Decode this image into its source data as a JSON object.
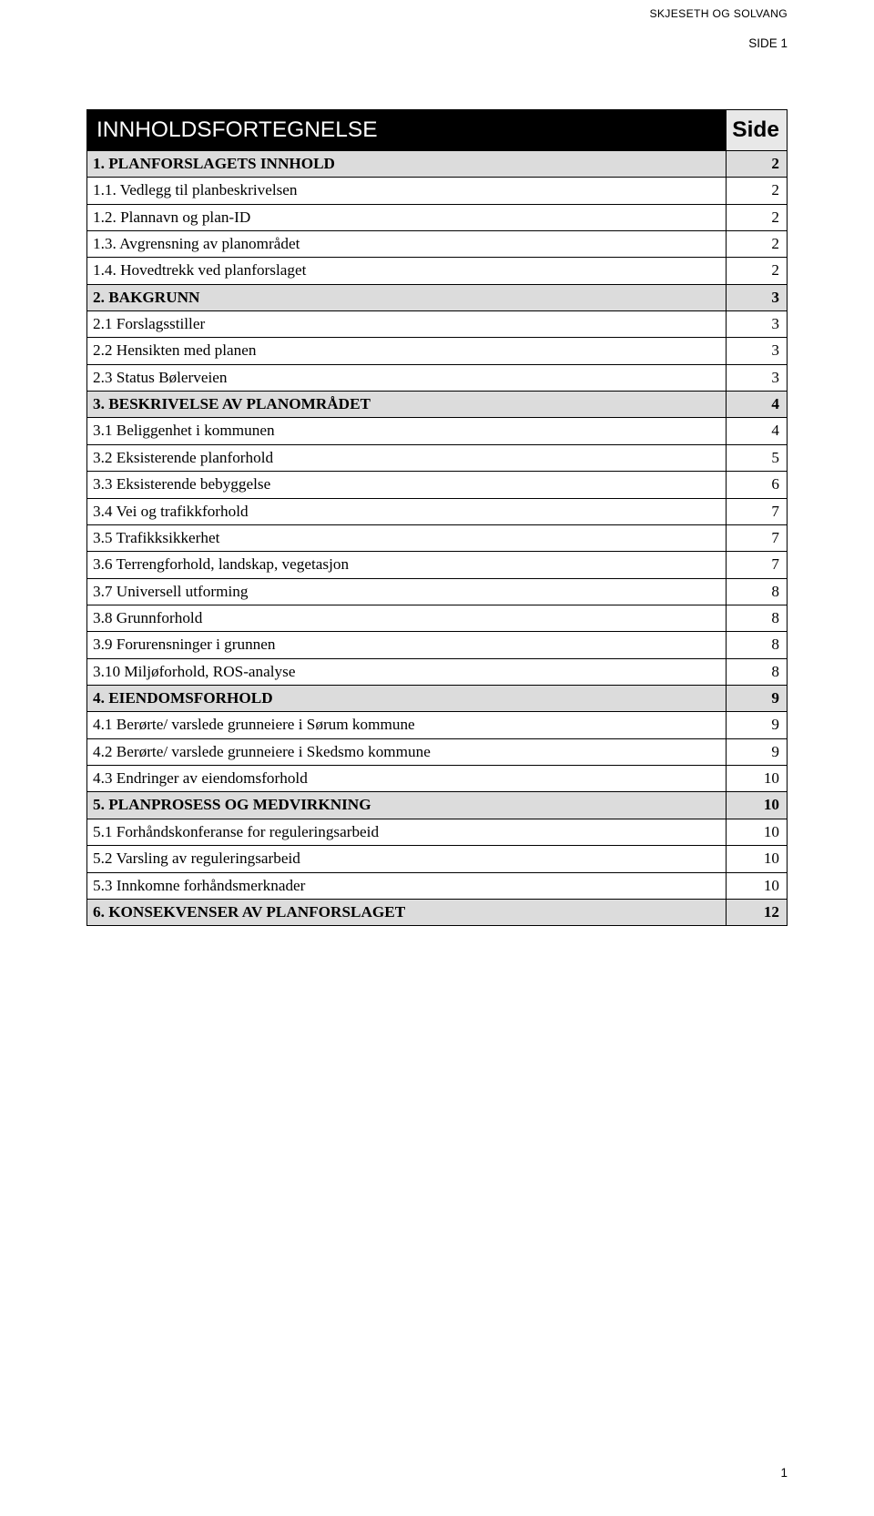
{
  "header": {
    "company": "SKJESETH OG SOLVANG",
    "side_label": "SIDE 1"
  },
  "toc": {
    "title": "INNHOLDSFORTEGNELSE",
    "side_header": "Side",
    "rows": [
      {
        "type": "section",
        "label": "1.   PLANFORSLAGETS INNHOLD",
        "page": "2"
      },
      {
        "type": "sub",
        "label": "1.1. Vedlegg til planbeskrivelsen",
        "page": "2"
      },
      {
        "type": "sub",
        "label": "1.2. Plannavn og plan-ID",
        "page": "2"
      },
      {
        "type": "sub",
        "label": "1.3. Avgrensning av planområdet",
        "page": "2"
      },
      {
        "type": "sub",
        "label": "1.4. Hovedtrekk ved planforslaget",
        "page": "2"
      },
      {
        "type": "section",
        "label": "2.   BAKGRUNN",
        "page": "3"
      },
      {
        "type": "sub",
        "label": "2.1  Forslagsstiller",
        "page": "3"
      },
      {
        "type": "sub",
        "label": "2.2  Hensikten med planen",
        "page": "3"
      },
      {
        "type": "sub",
        "label": "2.3  Status Bølerveien",
        "page": "3"
      },
      {
        "type": "section",
        "label": "3.   BESKRIVELSE AV PLANOMRÅDET",
        "page": "4"
      },
      {
        "type": "sub",
        "label": "3.1 Beliggenhet i kommunen",
        "page": "4"
      },
      {
        "type": "sub",
        "label": "3.2 Eksisterende planforhold",
        "page": "5"
      },
      {
        "type": "sub",
        "label": "3.3 Eksisterende bebyggelse",
        "page": "6"
      },
      {
        "type": "sub",
        "label": "3.4 Vei og trafikkforhold",
        "page": "7"
      },
      {
        "type": "sub",
        "label": "3.5 Trafikksikkerhet",
        "page": "7"
      },
      {
        "type": "sub",
        "label": "3.6 Terrengforhold, landskap, vegetasjon",
        "page": "7"
      },
      {
        "type": "sub",
        "label": "3.7 Universell utforming",
        "page": "8"
      },
      {
        "type": "sub",
        "label": "3.8 Grunnforhold",
        "page": "8"
      },
      {
        "type": "sub",
        "label": "3.9 Forurensninger i grunnen",
        "page": "8"
      },
      {
        "type": "sub",
        "label": "3.10 Miljøforhold, ROS-analyse",
        "page": "8"
      },
      {
        "type": "section",
        "label": "4.   EIENDOMSFORHOLD",
        "page": "9"
      },
      {
        "type": "sub",
        "label": "4.1 Berørte/ varslede grunneiere i Sørum kommune",
        "page": "9"
      },
      {
        "type": "sub",
        "label": "4.2 Berørte/ varslede grunneiere i Skedsmo kommune",
        "page": "9"
      },
      {
        "type": "sub",
        "label": "4.3 Endringer av eiendomsforhold",
        "page": "10"
      },
      {
        "type": "section",
        "label": "5.   PLANPROSESS OG MEDVIRKNING",
        "page": "10"
      },
      {
        "type": "sub",
        "label": "5.1 Forhåndskonferanse for reguleringsarbeid",
        "page": "10"
      },
      {
        "type": "sub",
        "label": "5.2 Varsling av reguleringsarbeid",
        "page": "10"
      },
      {
        "type": "sub",
        "label": "5.3 Innkomne forhåndsmerknader",
        "page": "10"
      },
      {
        "type": "section",
        "label": "6.   KONSEKVENSER AV PLANFORSLAGET",
        "page": "12"
      }
    ]
  },
  "footer": {
    "page_number": "1"
  },
  "style": {
    "colors": {
      "title_bg": "#000000",
      "title_fg": "#ffffff",
      "section_bg": "#dcdcdc",
      "side_header_bg": "#e8e8e8",
      "border": "#000000",
      "page_bg": "#ffffff",
      "text": "#000000"
    },
    "fonts": {
      "body_family": "Times New Roman",
      "title_family": "Arial",
      "header_family": "Arial",
      "body_size_pt": 13,
      "title_size_pt": 18.5,
      "header_size_pt": 9
    }
  }
}
